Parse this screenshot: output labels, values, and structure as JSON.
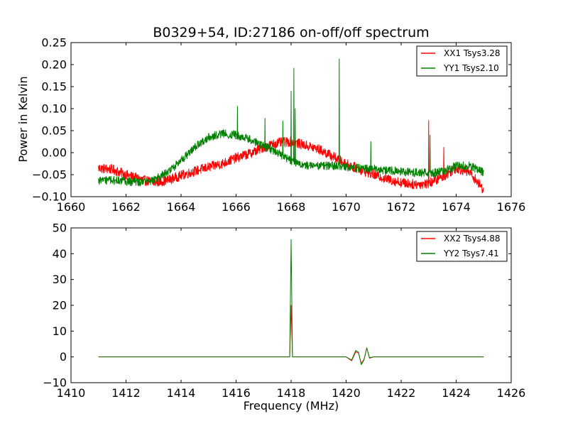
{
  "chart_data": [
    {
      "type": "line",
      "title": "B0329+54, ID:27186 on-off/off spectrum",
      "xlabel": "",
      "ylabel": "Power in Kelvin",
      "xlim": [
        1660,
        1676
      ],
      "ylim": [
        -0.1,
        0.25
      ],
      "xticks": [
        "1660",
        "1662",
        "1664",
        "1666",
        "1668",
        "1670",
        "1672",
        "1674",
        "1676"
      ],
      "yticks": [
        "0.25",
        "0.20",
        "0.15",
        "0.10",
        "0.05",
        "0.00",
        "−0.05",
        "−0.10"
      ],
      "legend_position": "top-right",
      "series": [
        {
          "name": "XX1 Tsys3.28",
          "color": "#ff0000",
          "noise": 0.007,
          "x": [
            1661.0,
            1661.5,
            1662.0,
            1662.5,
            1663.0,
            1663.5,
            1664.0,
            1664.5,
            1665.0,
            1665.5,
            1666.0,
            1666.5,
            1667.0,
            1667.5,
            1668.0,
            1668.5,
            1669.0,
            1669.5,
            1670.0,
            1670.5,
            1671.0,
            1671.5,
            1672.0,
            1672.5,
            1673.0,
            1673.5,
            1674.0,
            1674.5,
            1675.0
          ],
          "y": [
            -0.035,
            -0.038,
            -0.05,
            -0.06,
            -0.068,
            -0.063,
            -0.052,
            -0.042,
            -0.033,
            -0.025,
            -0.012,
            -0.002,
            0.012,
            0.022,
            0.025,
            0.017,
            0.008,
            -0.008,
            -0.025,
            -0.038,
            -0.05,
            -0.06,
            -0.068,
            -0.072,
            -0.07,
            -0.055,
            -0.035,
            -0.045,
            -0.085
          ],
          "spikes": [
            {
              "x": 1673.0,
              "y": 0.073
            },
            {
              "x": 1673.55,
              "y": 0.012
            }
          ]
        },
        {
          "name": "YY1 Tsys2.10",
          "color": "#008000",
          "noise": 0.006,
          "x": [
            1661.0,
            1661.5,
            1662.0,
            1662.5,
            1663.0,
            1663.5,
            1664.0,
            1664.5,
            1665.0,
            1665.5,
            1666.0,
            1666.5,
            1667.0,
            1667.5,
            1668.0,
            1668.5,
            1669.0,
            1669.5,
            1670.0,
            1670.5,
            1671.0,
            1671.5,
            1672.0,
            1672.5,
            1673.0,
            1673.5,
            1674.0,
            1674.5,
            1675.0
          ],
          "y": [
            -0.063,
            -0.063,
            -0.065,
            -0.067,
            -0.063,
            -0.045,
            -0.018,
            0.012,
            0.035,
            0.043,
            0.04,
            0.03,
            0.015,
            0.0,
            -0.018,
            -0.028,
            -0.03,
            -0.03,
            -0.033,
            -0.035,
            -0.037,
            -0.04,
            -0.043,
            -0.045,
            -0.047,
            -0.043,
            -0.03,
            -0.03,
            -0.045
          ],
          "spikes": [
            {
              "x": 1666.05,
              "y": 0.105
            },
            {
              "x": 1667.05,
              "y": 0.078
            },
            {
              "x": 1667.7,
              "y": 0.072
            },
            {
              "x": 1668.0,
              "y": 0.14
            },
            {
              "x": 1668.1,
              "y": 0.192
            },
            {
              "x": 1668.15,
              "y": 0.1
            },
            {
              "x": 1669.75,
              "y": 0.213
            },
            {
              "x": 1670.9,
              "y": 0.025
            },
            {
              "x": 1673.05,
              "y": 0.04
            }
          ]
        }
      ]
    },
    {
      "type": "line",
      "title": "",
      "xlabel": "Frequency (MHz)",
      "ylabel": "",
      "xlim": [
        1410,
        1426
      ],
      "ylim": [
        -10,
        50
      ],
      "xticks": [
        "1410",
        "1412",
        "1414",
        "1416",
        "1418",
        "1420",
        "1422",
        "1424",
        "1426"
      ],
      "yticks": [
        "50",
        "40",
        "30",
        "20",
        "10",
        "0",
        "−10"
      ],
      "legend_position": "top-right",
      "series": [
        {
          "name": "XX2 Tsys4.88",
          "color": "#ff0000",
          "x": [
            1411.0,
            1417.95,
            1418.0,
            1418.05,
            1420.0,
            1420.2,
            1420.35,
            1420.45,
            1420.55,
            1420.65,
            1420.75,
            1420.85,
            1421.0,
            1425.0
          ],
          "y": [
            0,
            0,
            20,
            0,
            0,
            -1.5,
            2,
            1.5,
            -2.5,
            -1,
            3.5,
            -0.5,
            0,
            0
          ]
        },
        {
          "name": "YY2 Tsys7.41",
          "color": "#008000",
          "x": [
            1411.0,
            1417.95,
            1418.0,
            1418.05,
            1420.0,
            1420.2,
            1420.35,
            1420.45,
            1420.55,
            1420.65,
            1420.75,
            1420.85,
            1421.0,
            1425.0
          ],
          "y": [
            0,
            0,
            45.5,
            0,
            0,
            -1.2,
            2.5,
            1.8,
            -3,
            -1.2,
            3.5,
            -0.3,
            0,
            0
          ]
        }
      ]
    }
  ]
}
